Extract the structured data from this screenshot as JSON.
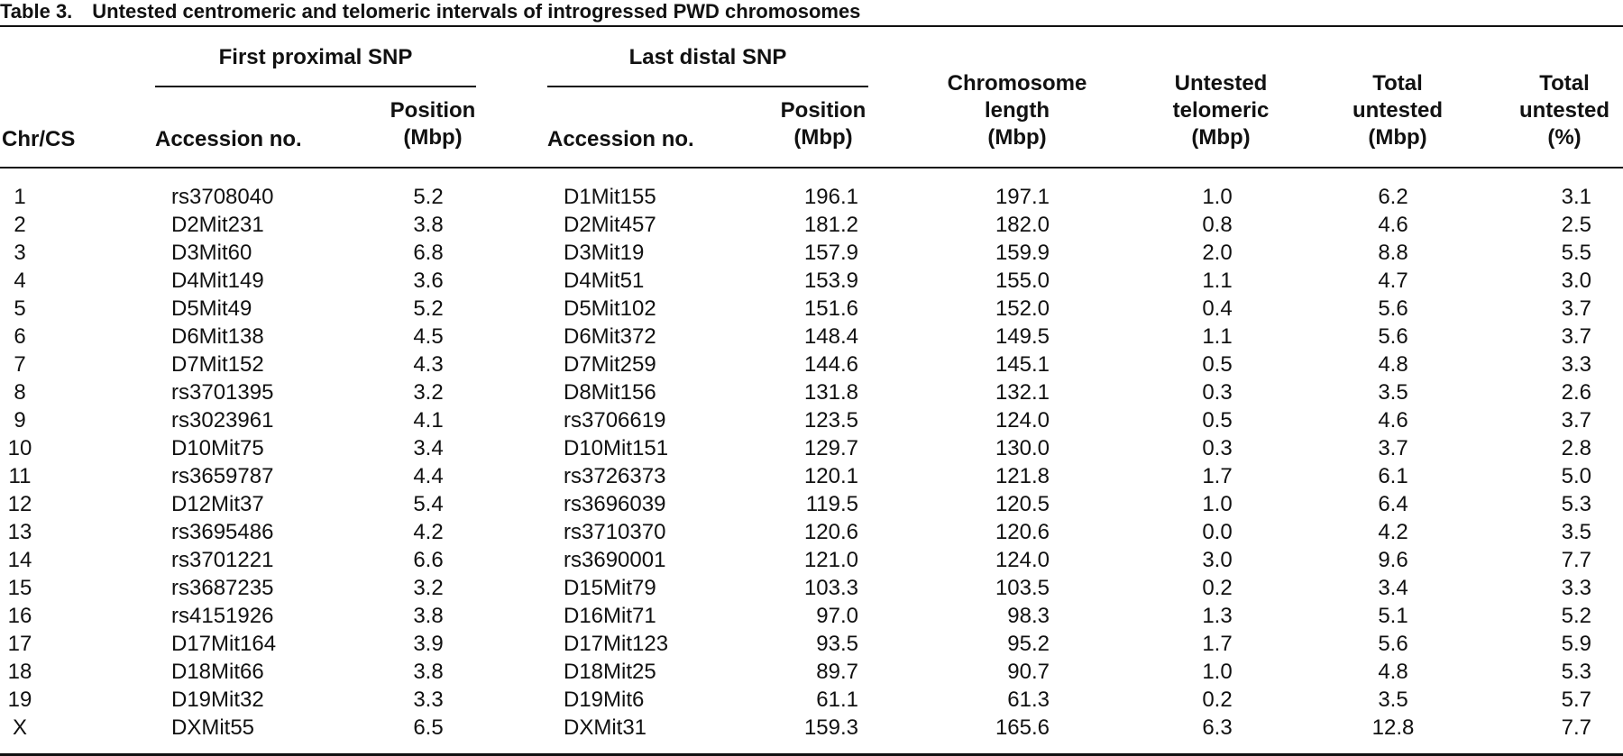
{
  "caption": {
    "label": "Table 3.",
    "title": "Untested centromeric and telomeric intervals of introgressed PWD chromosomes"
  },
  "groups": {
    "first": "First proximal SNP",
    "last": "Last distal SNP"
  },
  "headers": {
    "chr": "Chr/CS",
    "acc1": "Accession no.",
    "pos1": [
      "Position",
      "(Mbp)"
    ],
    "acc2": "Accession no.",
    "pos2": [
      "Position",
      "(Mbp)"
    ],
    "len": [
      "Chromosome",
      "length",
      "(Mbp)"
    ],
    "tel": [
      "Untested",
      "telomeric",
      "(Mbp)"
    ],
    "tot_mbp": [
      "Total",
      "untested",
      "(Mbp)"
    ],
    "tot_pct": [
      "Total",
      "untested",
      "(%)"
    ]
  },
  "rows": [
    [
      "1",
      "rs3708040",
      "5.2",
      "D1Mit155",
      "196.1",
      "197.1",
      "1.0",
      "6.2",
      "3.1"
    ],
    [
      "2",
      "D2Mit231",
      "3.8",
      "D2Mit457",
      "181.2",
      "182.0",
      "0.8",
      "4.6",
      "2.5"
    ],
    [
      "3",
      "D3Mit60",
      "6.8",
      "D3Mit19",
      "157.9",
      "159.9",
      "2.0",
      "8.8",
      "5.5"
    ],
    [
      "4",
      "D4Mit149",
      "3.6",
      "D4Mit51",
      "153.9",
      "155.0",
      "1.1",
      "4.7",
      "3.0"
    ],
    [
      "5",
      "D5Mit49",
      "5.2",
      "D5Mit102",
      "151.6",
      "152.0",
      "0.4",
      "5.6",
      "3.7"
    ],
    [
      "6",
      "D6Mit138",
      "4.5",
      "D6Mit372",
      "148.4",
      "149.5",
      "1.1",
      "5.6",
      "3.7"
    ],
    [
      "7",
      "D7Mit152",
      "4.3",
      "D7Mit259",
      "144.6",
      "145.1",
      "0.5",
      "4.8",
      "3.3"
    ],
    [
      "8",
      "rs3701395",
      "3.2",
      "D8Mit156",
      "131.8",
      "132.1",
      "0.3",
      "3.5",
      "2.6"
    ],
    [
      "9",
      "rs3023961",
      "4.1",
      "rs3706619",
      "123.5",
      "124.0",
      "0.5",
      "4.6",
      "3.7"
    ],
    [
      "10",
      "D10Mit75",
      "3.4",
      "D10Mit151",
      "129.7",
      "130.0",
      "0.3",
      "3.7",
      "2.8"
    ],
    [
      "11",
      "rs3659787",
      "4.4",
      "rs3726373",
      "120.1",
      "121.8",
      "1.7",
      "6.1",
      "5.0"
    ],
    [
      "12",
      "D12Mit37",
      "5.4",
      "rs3696039",
      "119.5",
      "120.5",
      "1.0",
      "6.4",
      "5.3"
    ],
    [
      "13",
      "rs3695486",
      "4.2",
      "rs3710370",
      "120.6",
      "120.6",
      "0.0",
      "4.2",
      "3.5"
    ],
    [
      "14",
      "rs3701221",
      "6.6",
      "rs3690001",
      "121.0",
      "124.0",
      "3.0",
      "9.6",
      "7.7"
    ],
    [
      "15",
      "rs3687235",
      "3.2",
      "D15Mit79",
      "103.3",
      "103.5",
      "0.2",
      "3.4",
      "3.3"
    ],
    [
      "16",
      "rs4151926",
      "3.8",
      "D16Mit71",
      "97.0",
      "98.3",
      "1.3",
      "5.1",
      "5.2"
    ],
    [
      "17",
      "D17Mit164",
      "3.9",
      "D17Mit123",
      "93.5",
      "95.2",
      "1.7",
      "5.6",
      "5.9"
    ],
    [
      "18",
      "D18Mit66",
      "3.8",
      "D18Mit25",
      "89.7",
      "90.7",
      "1.0",
      "4.8",
      "5.3"
    ],
    [
      "19",
      "D19Mit32",
      "3.3",
      "D19Mit6",
      "61.1",
      "61.3",
      "0.2",
      "3.5",
      "5.7"
    ],
    [
      "X",
      "DXMit55",
      "6.5",
      "DXMit31",
      "159.3",
      "165.6",
      "6.3",
      "12.8",
      "7.7"
    ]
  ]
}
